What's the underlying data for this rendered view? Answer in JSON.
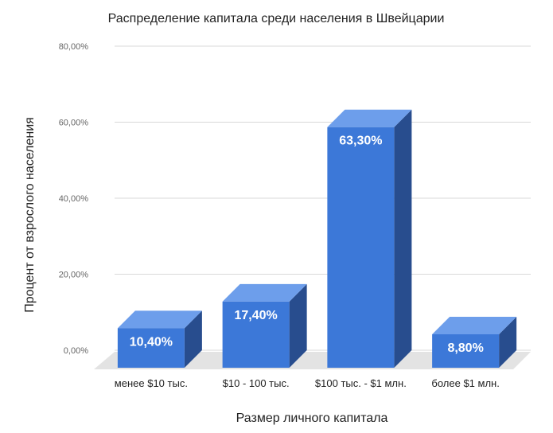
{
  "chart_data": {
    "type": "bar",
    "title": "Распределение капитала среди населения в Швейцарии",
    "xlabel": "Размер личного капитала",
    "ylabel": "Процент от взрослого населения",
    "categories": [
      "менее $10 тыс.",
      "$10  - 100 тыс.",
      "$100 тыс. - $1 млн.",
      "более $1 млн."
    ],
    "values": [
      10.4,
      17.4,
      63.3,
      8.8
    ],
    "data_labels": [
      "10,40%",
      "17,40%",
      "63,30%",
      "8,80%"
    ],
    "ylim": [
      0,
      80
    ],
    "yticks": [
      0,
      20,
      40,
      60,
      80
    ],
    "ytick_labels": [
      "0,00%",
      "20,00%",
      "40,00%",
      "60,00%",
      "80,00%"
    ],
    "grid": true,
    "legend": "none",
    "style": "3d",
    "colors": {
      "bar_front": "#3c78d8",
      "bar_top": "#6d9eeb",
      "bar_side": "#284d8e",
      "floor": "#e3e3e3",
      "grid": "#d9d9d9",
      "text": "#222222",
      "tick_text": "#666666",
      "label_text": "#ffffff"
    }
  }
}
